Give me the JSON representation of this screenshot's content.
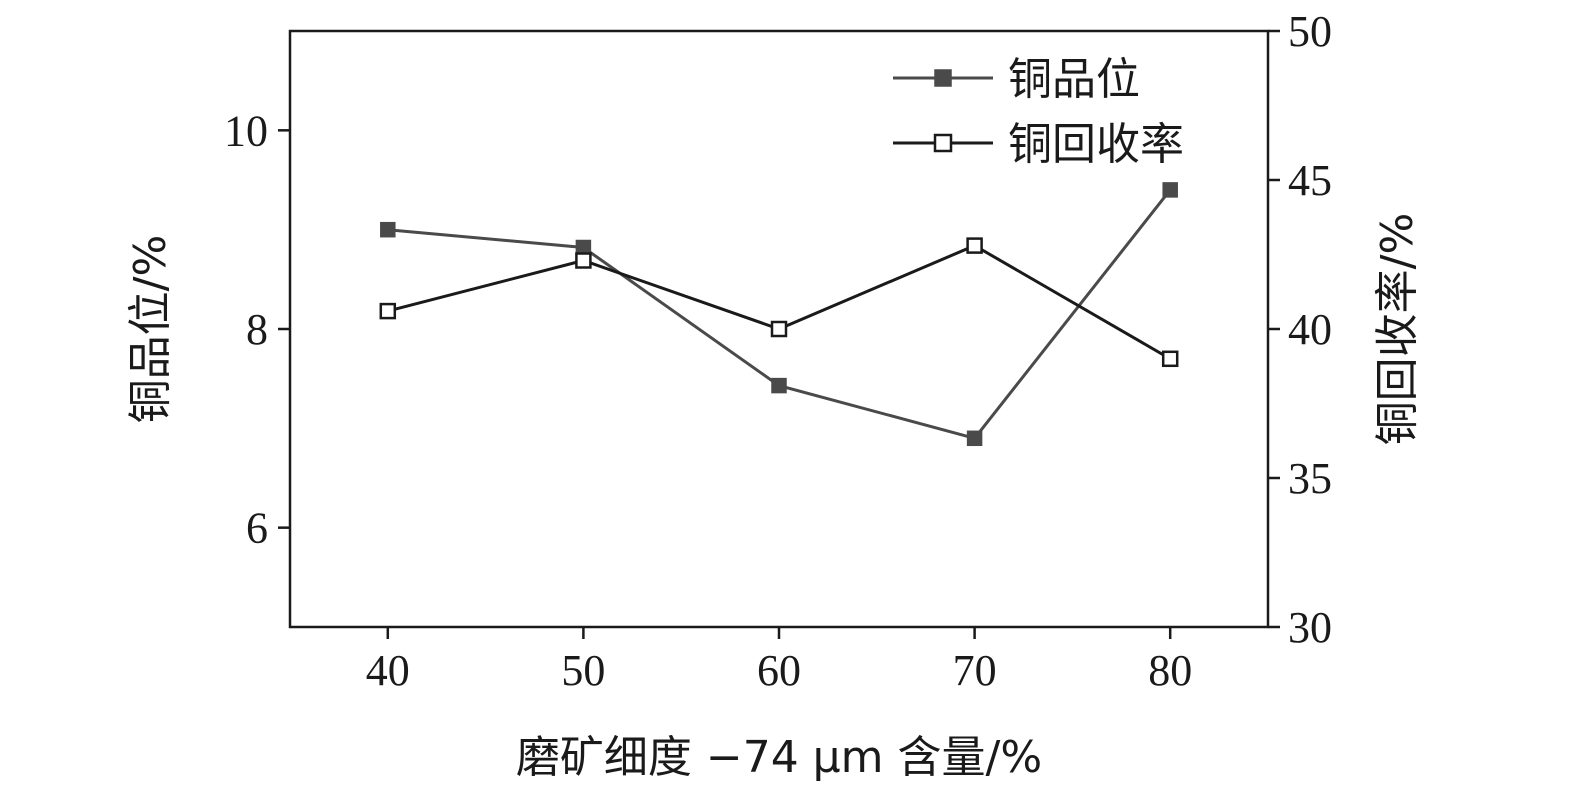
{
  "chart_data": {
    "type": "line",
    "x": [
      40,
      50,
      60,
      70,
      80
    ],
    "xlabel": "磨矿细度 −74 μm 含量/%",
    "xlim": [
      35,
      85
    ],
    "xticks": [
      "40",
      "50",
      "60",
      "70",
      "80"
    ],
    "ylabel_left": "铜品位/%",
    "ylim_left": [
      5,
      11
    ],
    "yticks_left": [
      "6",
      "8",
      "10"
    ],
    "ylabel_right": "铜回收率/%",
    "ylim_right": [
      30,
      50
    ],
    "yticks_right": [
      "30",
      "35",
      "40",
      "45",
      "50"
    ],
    "grid": false,
    "legend_position": "top-right",
    "series": [
      {
        "name": "铜品位",
        "axis": "left",
        "marker": "filled-square",
        "color": "#4a4a4a",
        "values": [
          9.0,
          8.82,
          7.43,
          6.9,
          9.4
        ]
      },
      {
        "name": "铜回收率",
        "axis": "right",
        "marker": "open-square",
        "color": "#1a1a1a",
        "values": [
          40.6,
          42.3,
          40.0,
          42.8,
          39.0
        ]
      }
    ]
  }
}
